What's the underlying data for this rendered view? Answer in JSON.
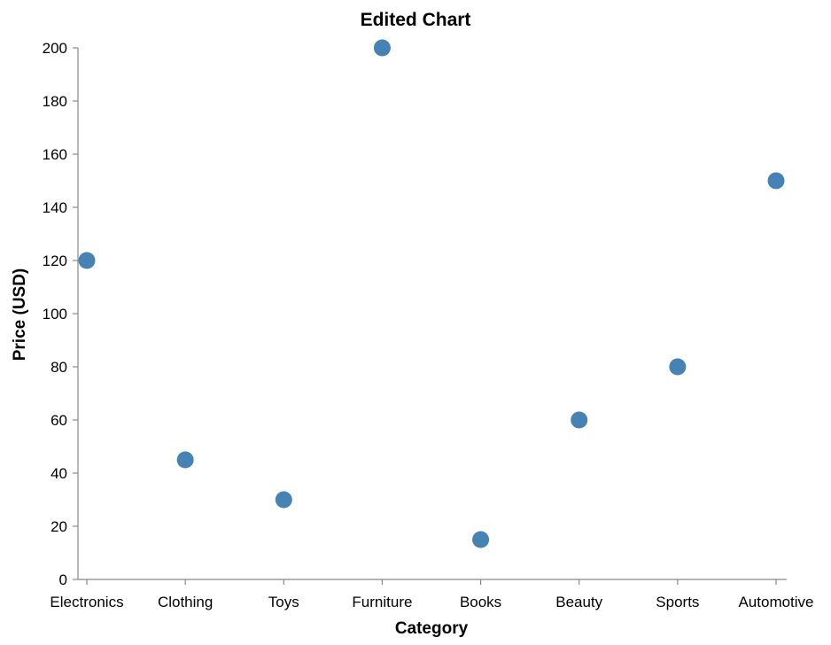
{
  "chart_data": {
    "type": "scatter",
    "title": "Edited Chart",
    "xlabel": "Category",
    "ylabel": "Price (USD)",
    "categories": [
      "Electronics",
      "Clothing",
      "Toys",
      "Furniture",
      "Books",
      "Beauty",
      "Sports",
      "Automotive"
    ],
    "values": [
      120,
      45,
      30,
      200,
      15,
      60,
      80,
      150
    ],
    "ylim": [
      0,
      200
    ],
    "yticks": [
      0,
      20,
      40,
      60,
      80,
      100,
      120,
      140,
      160,
      180,
      200
    ],
    "grid": false,
    "point_color": "#4682b4"
  }
}
